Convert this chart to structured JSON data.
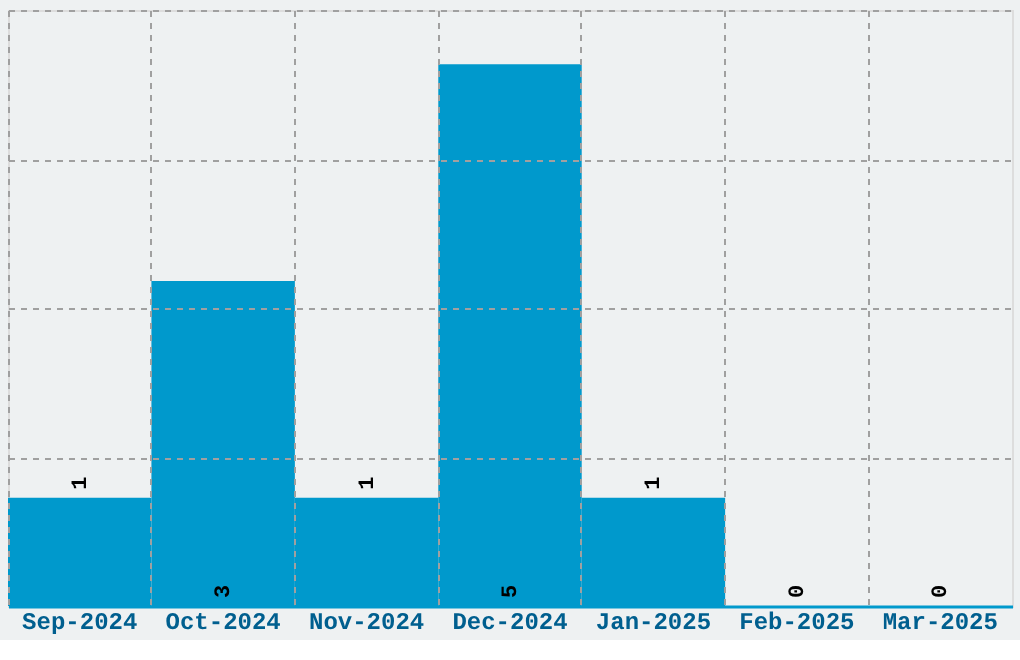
{
  "chart_data": {
    "type": "bar",
    "categories": [
      "Sep-2024",
      "Oct-2024",
      "Nov-2024",
      "Dec-2024",
      "Jan-2025",
      "Feb-2025",
      "Mar-2025"
    ],
    "values": [
      1,
      3,
      1,
      5,
      1,
      0,
      0
    ],
    "color": "#0099cc",
    "data_labels": true,
    "grid": true,
    "tick_labels": "x",
    "ylim": [
      0,
      5.5
    ],
    "yticks": [
      {
        "value": 0,
        "label": null
      },
      {
        "value": 1.375,
        "label": null
      },
      {
        "value": 2.75,
        "label": null
      },
      {
        "value": 4.125,
        "label": null
      },
      {
        "value": 5.5,
        "label": null
      }
    ]
  }
}
